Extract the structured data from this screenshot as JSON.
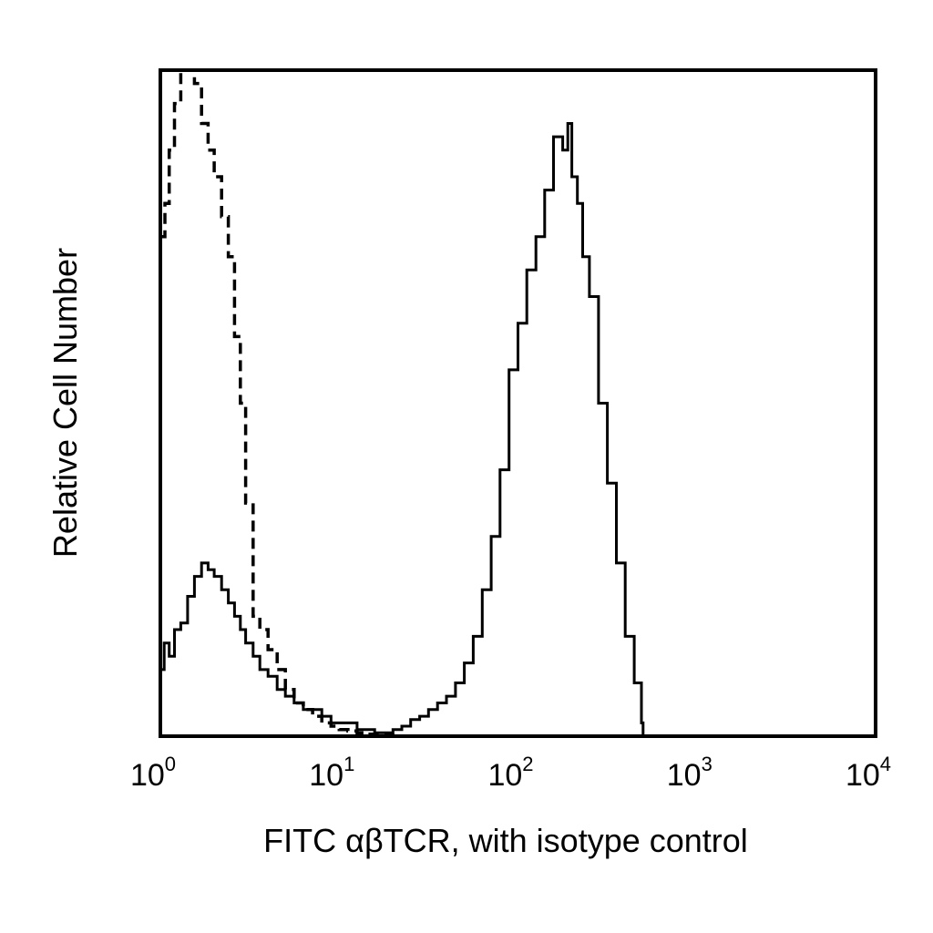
{
  "chart_data": {
    "type": "line",
    "title": "",
    "xlabel": "FITC αβTCR, with isotype control",
    "ylabel": "Relative Cell Number",
    "x_scale": "log",
    "xlim": [
      1,
      10000
    ],
    "ylim": [
      0,
      100
    ],
    "grid": false,
    "legend": "none",
    "x_ticks": [
      {
        "value": 1,
        "base": "10",
        "exp": "0"
      },
      {
        "value": 10,
        "base": "10",
        "exp": "1"
      },
      {
        "value": 100,
        "base": "10",
        "exp": "2"
      },
      {
        "value": 1000,
        "base": "10",
        "exp": "3"
      },
      {
        "value": 10000,
        "base": "10",
        "exp": "4"
      }
    ],
    "series": [
      {
        "style": "solid",
        "color": "#000000",
        "x": [
          1.0,
          1.05,
          1.12,
          1.2,
          1.3,
          1.42,
          1.55,
          1.7,
          1.85,
          2.0,
          2.2,
          2.4,
          2.6,
          2.8,
          3.0,
          3.3,
          3.6,
          4.0,
          4.5,
          5.0,
          5.6,
          6.3,
          7.1,
          8.0,
          9.0,
          10.0,
          11.2,
          12.6,
          14.1,
          15.8,
          17.8,
          20.0,
          22.4,
          25.1,
          28.2,
          31.6,
          35.5,
          39.8,
          44.7,
          50.1,
          56.2,
          63.1,
          70.8,
          79.4,
          89.1,
          100.0,
          112.0,
          126.0,
          141.0,
          158.0,
          178.0,
          190.0,
          200.0,
          215.0,
          230.0,
          251.0,
          282.0,
          316.0,
          355.0,
          398.0,
          447.0,
          490.0,
          501.0
        ],
        "y": [
          10,
          14,
          12,
          16,
          17,
          21,
          24,
          26,
          25,
          24,
          22,
          20,
          18,
          16,
          14,
          12,
          10,
          9,
          7,
          6,
          5,
          4,
          4,
          3,
          2,
          2,
          2,
          1,
          1,
          0.5,
          0.5,
          1,
          1.5,
          2.5,
          3,
          4,
          5,
          6,
          8,
          11,
          15,
          22,
          30,
          40,
          55,
          62,
          70,
          75,
          82,
          90,
          88,
          92,
          84,
          80,
          72,
          66,
          50,
          38,
          26,
          15,
          8,
          2,
          0
        ]
      },
      {
        "style": "dashed",
        "color": "#000000",
        "x": [
          1.0,
          1.06,
          1.12,
          1.2,
          1.3,
          1.42,
          1.55,
          1.7,
          1.85,
          2.0,
          2.2,
          2.4,
          2.6,
          2.8,
          3.0,
          3.3,
          3.6,
          4.0,
          4.5,
          5.0,
          5.6,
          6.3,
          7.1,
          8.0,
          9.0,
          10.0,
          11.2,
          12.6,
          14.1,
          15.8,
          17.8,
          20.0
        ],
        "y": [
          75,
          80,
          88,
          95,
          100,
          100,
          98,
          92,
          88,
          84,
          78,
          72,
          60,
          50,
          35,
          18,
          16,
          13,
          10,
          7,
          5,
          4,
          3,
          2,
          1.5,
          1,
          0.8,
          0.5,
          0.3,
          0.2,
          0.1,
          0
        ]
      }
    ]
  }
}
